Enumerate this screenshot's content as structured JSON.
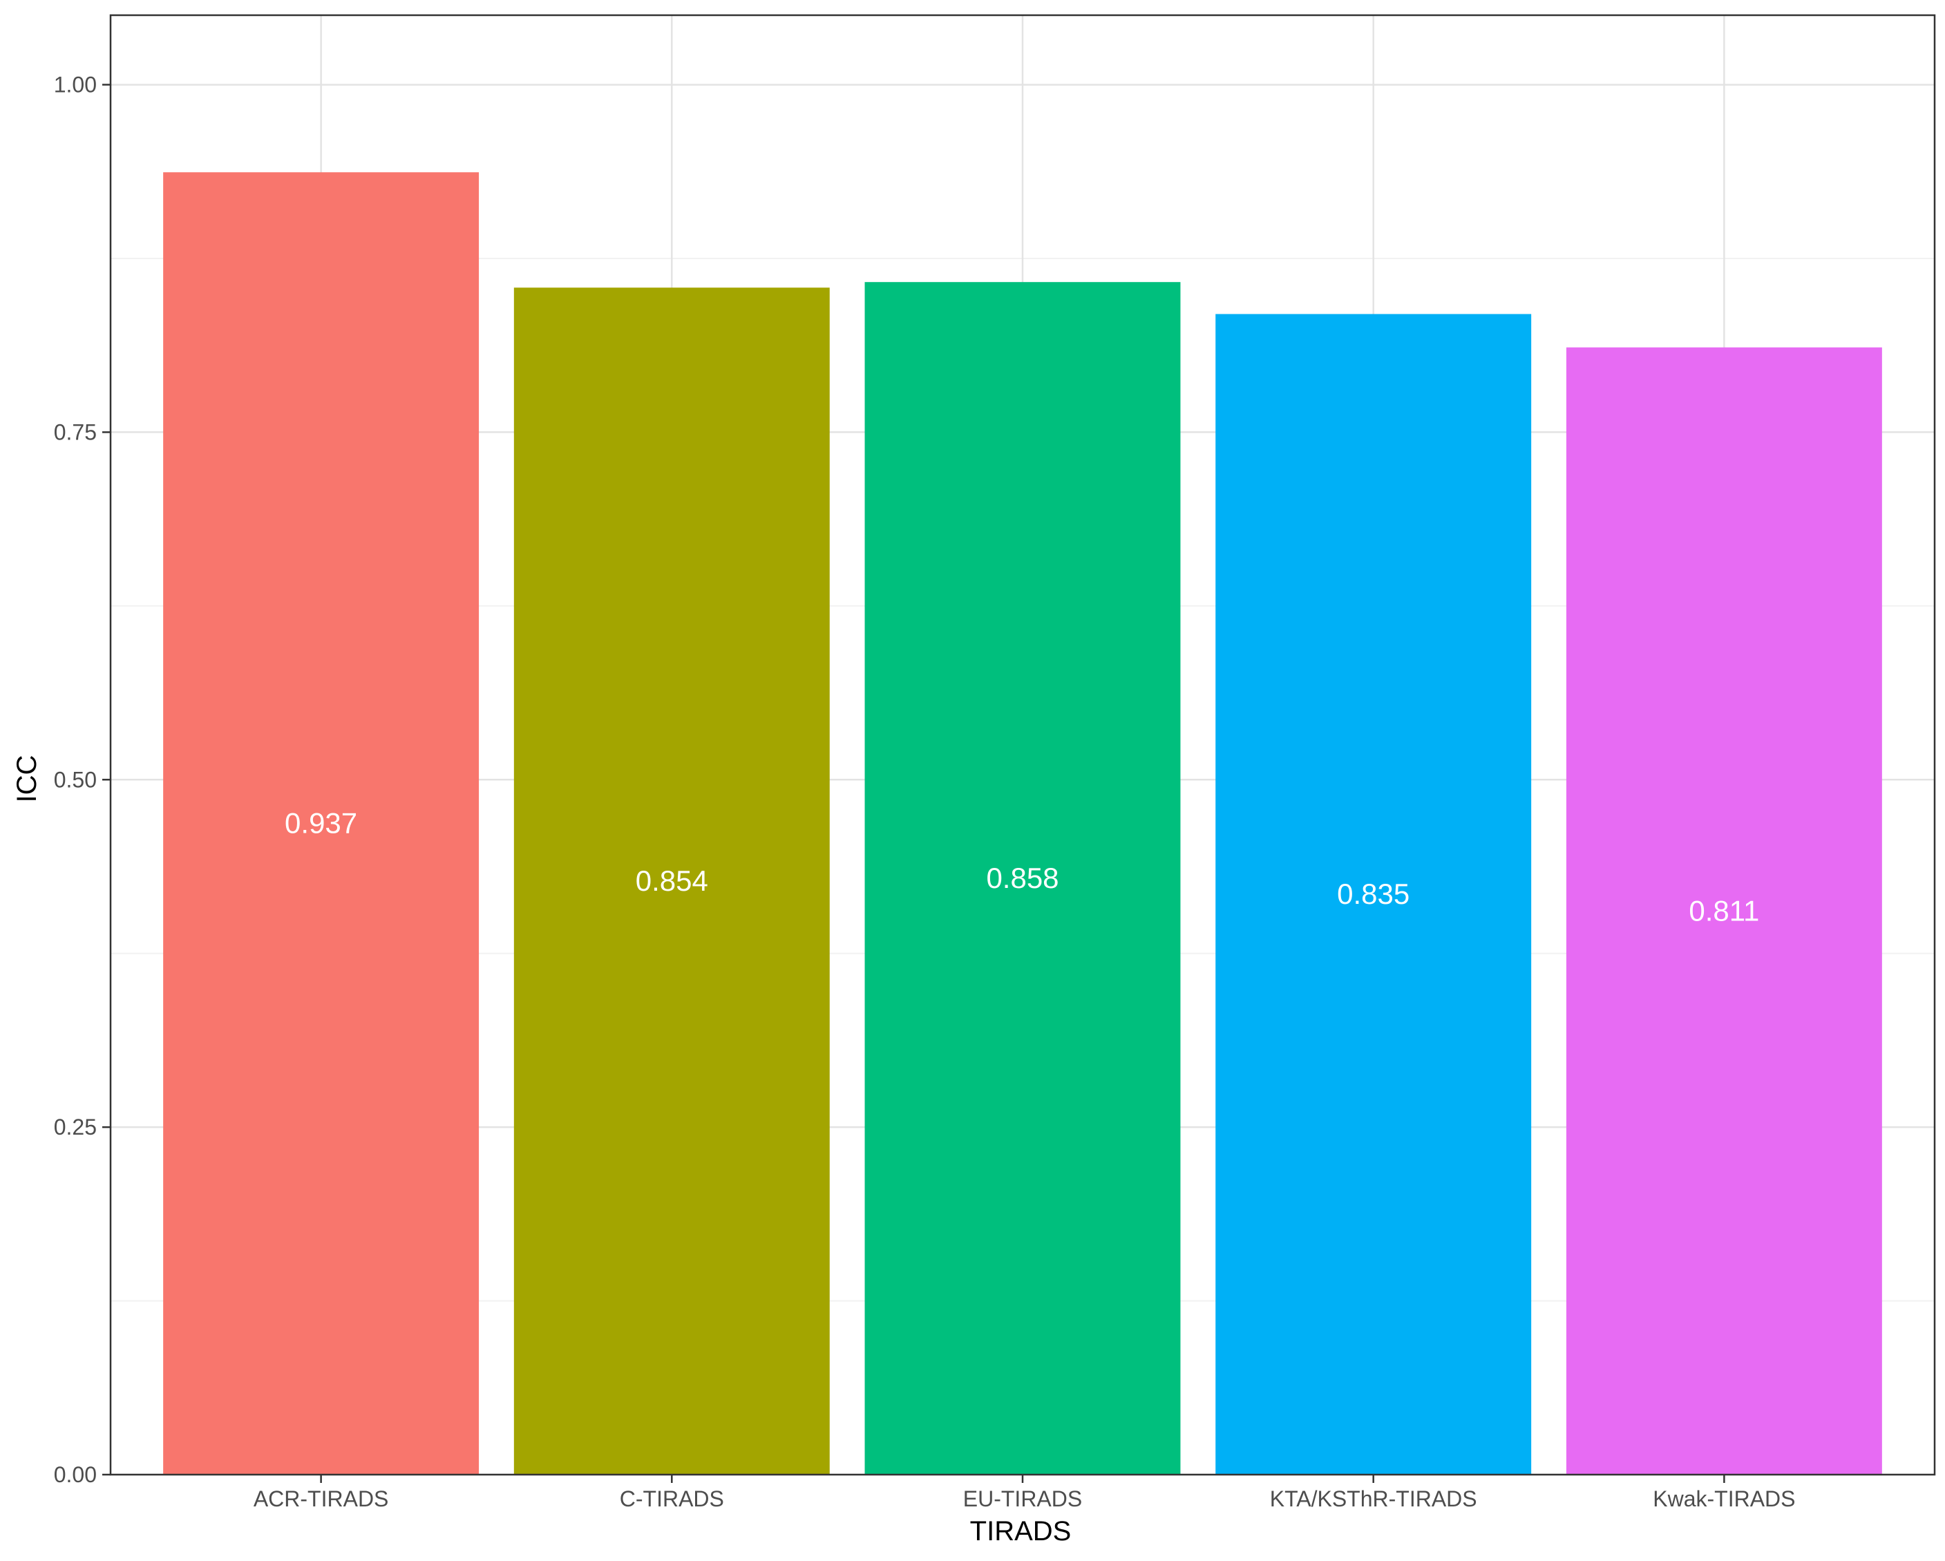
{
  "chart_data": {
    "type": "bar",
    "categories": [
      "ACR-TIRADS",
      "C-TIRADS",
      "EU-TIRADS",
      "KTA/KSThR-TIRADS",
      "Kwak-TIRADS"
    ],
    "values": [
      0.937,
      0.854,
      0.858,
      0.835,
      0.811
    ],
    "data_labels": [
      "0.937",
      "0.854",
      "0.858",
      "0.835",
      "0.811"
    ],
    "colors": [
      "#F8766D",
      "#A3A500",
      "#00BF7D",
      "#00B0F6",
      "#E76BF3"
    ],
    "title": "",
    "xlabel": "TIRADS",
    "ylabel": "ICC",
    "ylim": [
      0,
      1.05
    ],
    "yticks": [
      0,
      0.25,
      0.5,
      0.75,
      1.0
    ],
    "ytick_labels": [
      "0.00",
      "0.25",
      "0.50",
      "0.75",
      "1.00"
    ],
    "grid": true,
    "legend": "none"
  }
}
